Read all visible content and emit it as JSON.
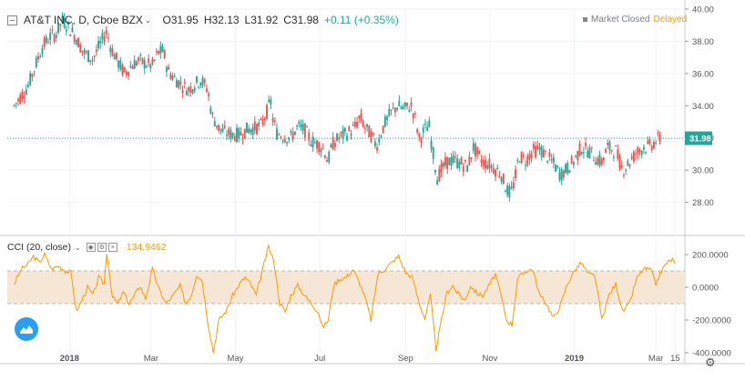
{
  "header": {
    "symbol": "AT&T INC, D, Cboe BZX",
    "open": "O31.95",
    "high": "H32.13",
    "low": "L31.92",
    "close": "C31.98",
    "change": "+0.11 (+0.35%)",
    "market_status": "Market Closed",
    "data_status": "Delayed"
  },
  "indicator": {
    "label": "CCI (20, close)",
    "value": "134.9462"
  },
  "colors": {
    "up": "#26a69a",
    "down": "#ef5350",
    "cci_line": "#ff9800",
    "cci_band": "#f5e6d6",
    "last_price_bg": "#26a69a",
    "accent": "#2a9ff0"
  },
  "icons": [
    "chart-minimize-icon",
    "chevron-down-icon",
    "eye-icon",
    "settings-icon",
    "close-icon",
    "tradingview-logo-icon",
    "gear-icon"
  ],
  "chart_data": [
    {
      "type": "candlestick",
      "title": "AT&T INC, D, Cboe BZX",
      "y_axis_labels": [
        "40.00",
        "38.00",
        "36.00",
        "34.00",
        "32.00",
        "30.00",
        "28.00"
      ],
      "ylim": [
        26.0,
        40.0
      ],
      "last_price_label": "31.98",
      "last_price": 31.98,
      "x_axis_labels": [
        "2018",
        "Mar",
        "May",
        "Jul",
        "Sep",
        "Nov",
        "2019",
        "Mar",
        "15"
      ],
      "x_tick_days": [
        0,
        59,
        120,
        181,
        243,
        304,
        365,
        424,
        438
      ],
      "xlim": [
        -45,
        445
      ],
      "first_day_offset": -40,
      "anchors": [
        [
          -40,
          34.0
        ],
        [
          -35,
          34.6
        ],
        [
          -30,
          35.2
        ],
        [
          -25,
          36.4
        ],
        [
          -20,
          37.6
        ],
        [
          -14,
          38.3
        ],
        [
          -10,
          38.4
        ],
        [
          -5,
          39.3
        ],
        [
          0,
          38.8
        ],
        [
          5,
          38.2
        ],
        [
          10,
          37.3
        ],
        [
          17,
          36.9
        ],
        [
          22,
          37.8
        ],
        [
          27,
          38.6
        ],
        [
          30,
          37.6
        ],
        [
          35,
          36.7
        ],
        [
          40,
          36.0
        ],
        [
          45,
          36.5
        ],
        [
          50,
          36.8
        ],
        [
          55,
          36.6
        ],
        [
          60,
          36.5
        ],
        [
          64,
          37.3
        ],
        [
          68,
          37.4
        ],
        [
          71,
          36.2
        ],
        [
          76,
          35.7
        ],
        [
          81,
          35.3
        ],
        [
          86,
          35.0
        ],
        [
          90,
          35.3
        ],
        [
          95,
          35.6
        ],
        [
          100,
          35.0
        ],
        [
          103,
          33.4
        ],
        [
          108,
          32.6
        ],
        [
          113,
          32.3
        ],
        [
          118,
          32.2
        ],
        [
          123,
          32.2
        ],
        [
          128,
          32.5
        ],
        [
          133,
          32.6
        ],
        [
          139,
          32.8
        ],
        [
          142,
          33.5
        ],
        [
          146,
          34.3
        ],
        [
          147,
          33.2
        ],
        [
          150,
          32.3
        ],
        [
          155,
          32.1
        ],
        [
          160,
          32.0
        ],
        [
          165,
          32.7
        ],
        [
          170,
          32.5
        ],
        [
          175,
          31.8
        ],
        [
          180,
          31.6
        ],
        [
          184,
          31.3
        ],
        [
          187,
          30.5
        ],
        [
          190,
          31.6
        ],
        [
          196,
          32.1
        ],
        [
          201,
          32.3
        ],
        [
          206,
          32.6
        ],
        [
          210,
          33.3
        ],
        [
          214,
          32.6
        ],
        [
          218,
          32.2
        ],
        [
          222,
          31.5
        ],
        [
          227,
          32.7
        ],
        [
          232,
          33.5
        ],
        [
          237,
          34.0
        ],
        [
          242,
          33.8
        ],
        [
          247,
          34.0
        ],
        [
          250,
          33.2
        ],
        [
          253,
          31.9
        ],
        [
          256,
          32.4
        ],
        [
          260,
          32.8
        ],
        [
          262,
          31.5
        ],
        [
          266,
          29.5
        ],
        [
          269,
          30.0
        ],
        [
          273,
          30.5
        ],
        [
          278,
          30.6
        ],
        [
          283,
          30.4
        ],
        [
          288,
          30.2
        ],
        [
          292,
          31.4
        ],
        [
          295,
          31.0
        ],
        [
          299,
          30.5
        ],
        [
          303,
          30.4
        ],
        [
          307,
          30.1
        ],
        [
          312,
          29.8
        ],
        [
          316,
          28.8
        ],
        [
          319,
          28.5
        ],
        [
          322,
          29.4
        ],
        [
          325,
          30.9
        ],
        [
          330,
          30.6
        ],
        [
          335,
          31.2
        ],
        [
          340,
          31.3
        ],
        [
          346,
          30.8
        ],
        [
          350,
          30.4
        ],
        [
          355,
          29.7
        ],
        [
          360,
          30.1
        ],
        [
          365,
          30.6
        ],
        [
          370,
          31.4
        ],
        [
          375,
          31.2
        ],
        [
          378,
          31.0
        ],
        [
          381,
          30.7
        ],
        [
          385,
          30.5
        ],
        [
          389,
          31.4
        ],
        [
          395,
          31.2
        ],
        [
          400,
          30.0
        ],
        [
          405,
          30.5
        ],
        [
          410,
          31.1
        ],
        [
          415,
          31.4
        ],
        [
          420,
          31.5
        ],
        [
          424,
          31.8
        ],
        [
          428,
          32.0
        ]
      ]
    },
    {
      "type": "line",
      "title": "CCI (20, close)",
      "y_axis_labels": [
        "200.0000",
        "0.0000",
        "-200.0000",
        "-400.0000"
      ],
      "ylim": [
        -400,
        300
      ],
      "band": [
        -100,
        100
      ],
      "last_value": 134.9462,
      "anchors": [
        [
          -40,
          20
        ],
        [
          -35,
          110
        ],
        [
          -30,
          140
        ],
        [
          -26,
          190
        ],
        [
          -22,
          150
        ],
        [
          -18,
          200
        ],
        [
          -13,
          110
        ],
        [
          -8,
          130
        ],
        [
          -3,
          100
        ],
        [
          1,
          90
        ],
        [
          5,
          -150
        ],
        [
          9,
          -80
        ],
        [
          13,
          0
        ],
        [
          17,
          -50
        ],
        [
          21,
          60
        ],
        [
          25,
          20
        ],
        [
          27,
          215
        ],
        [
          31,
          -60
        ],
        [
          35,
          -100
        ],
        [
          39,
          -30
        ],
        [
          43,
          -100
        ],
        [
          47,
          -50
        ],
        [
          51,
          10
        ],
        [
          55,
          -70
        ],
        [
          60,
          110
        ],
        [
          65,
          -20
        ],
        [
          70,
          -100
        ],
        [
          75,
          -50
        ],
        [
          80,
          10
        ],
        [
          84,
          -100
        ],
        [
          88,
          -50
        ],
        [
          92,
          80
        ],
        [
          96,
          40
        ],
        [
          100,
          -210
        ],
        [
          104,
          -395
        ],
        [
          108,
          -200
        ],
        [
          113,
          -150
        ],
        [
          118,
          -50
        ],
        [
          123,
          20
        ],
        [
          127,
          60
        ],
        [
          131,
          20
        ],
        [
          135,
          -50
        ],
        [
          140,
          120
        ],
        [
          144,
          250
        ],
        [
          148,
          150
        ],
        [
          152,
          -100
        ],
        [
          156,
          -150
        ],
        [
          160,
          -50
        ],
        [
          165,
          10
        ],
        [
          170,
          -50
        ],
        [
          175,
          -100
        ],
        [
          180,
          -150
        ],
        [
          183,
          -250
        ],
        [
          187,
          -200
        ],
        [
          191,
          10
        ],
        [
          195,
          50
        ],
        [
          200,
          60
        ],
        [
          205,
          110
        ],
        [
          210,
          20
        ],
        [
          214,
          -70
        ],
        [
          218,
          -200
        ],
        [
          223,
          80
        ],
        [
          228,
          110
        ],
        [
          233,
          150
        ],
        [
          238,
          190
        ],
        [
          243,
          90
        ],
        [
          248,
          60
        ],
        [
          253,
          -100
        ],
        [
          257,
          -190
        ],
        [
          261,
          -50
        ],
        [
          265,
          -380
        ],
        [
          269,
          -200
        ],
        [
          273,
          -30
        ],
        [
          277,
          10
        ],
        [
          281,
          -40
        ],
        [
          286,
          -80
        ],
        [
          290,
          10
        ],
        [
          295,
          -40
        ],
        [
          299,
          -50
        ],
        [
          304,
          20
        ],
        [
          308,
          80
        ],
        [
          312,
          -50
        ],
        [
          316,
          -200
        ],
        [
          320,
          -230
        ],
        [
          324,
          50
        ],
        [
          330,
          100
        ],
        [
          335,
          110
        ],
        [
          340,
          -50
        ],
        [
          345,
          -100
        ],
        [
          350,
          -190
        ],
        [
          355,
          -110
        ],
        [
          360,
          20
        ],
        [
          365,
          100
        ],
        [
          370,
          150
        ],
        [
          375,
          80
        ],
        [
          380,
          70
        ],
        [
          385,
          -200
        ],
        [
          390,
          -50
        ],
        [
          395,
          20
        ],
        [
          400,
          -150
        ],
        [
          405,
          -100
        ],
        [
          410,
          50
        ],
        [
          415,
          110
        ],
        [
          420,
          110
        ],
        [
          424,
          20
        ],
        [
          428,
          100
        ],
        [
          432,
          150
        ],
        [
          436,
          170
        ],
        [
          438,
          135
        ]
      ]
    }
  ]
}
